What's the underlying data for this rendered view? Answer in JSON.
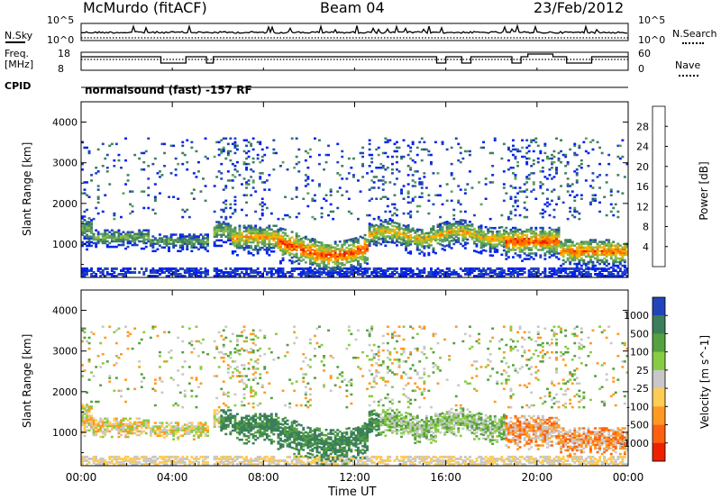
{
  "header": {
    "station": "McMurdo (fitACF)",
    "beam": "Beam 04",
    "date": "23/Feb/2012",
    "program": "normalsound (fast) -157 RF"
  },
  "top_panels": {
    "nsky_label": "N.Sky",
    "nsky_ticks": [
      "10^5",
      "10^0"
    ],
    "nsearch_label": "N.Search",
    "nsearch_ticks": [
      "10^5",
      "10^0"
    ],
    "freq_label_line1": "Freq.",
    "freq_label_line2": "[MHz]",
    "freq_ticks": [
      "18",
      "8"
    ],
    "nave_label": "Nave",
    "nave_ticks": [
      "60",
      "0"
    ],
    "cpid_label": "CPID"
  },
  "colors": {
    "power_scale": [
      "#0022ee",
      "#2244bb",
      "#3f7f5f",
      "#5fa05f",
      "#90c040",
      "#ffb000",
      "#ff7000",
      "#ee2000"
    ],
    "velocity_scale": [
      "#2244bb",
      "#3a7f5a",
      "#55a040",
      "#88cc44",
      "#c8c8c8",
      "#ffcc55",
      "#ff9922",
      "#ff6010",
      "#ee2000"
    ]
  },
  "chart_data": [
    {
      "type": "heatmap",
      "title": "",
      "xlabel": "",
      "ylabel": "Slant Range [km]",
      "x_ticks": [
        "00:00",
        "04:00",
        "08:00",
        "12:00",
        "16:00",
        "20:00",
        "00:00"
      ],
      "y_ticks": [
        "1000",
        "2000",
        "3000",
        "4000"
      ],
      "ylim": [
        180,
        4500
      ],
      "colorbar_label": "Power [dB]",
      "colorbar_ticks": [
        "4",
        "8",
        "12",
        "16",
        "20",
        "24",
        "28"
      ],
      "colorbar_range": [
        0,
        32
      ],
      "dominant_echo": {
        "hours": [
          0,
          24
        ],
        "slant_range_km": [
          700,
          1500
        ],
        "power_db": [
          12,
          30
        ]
      }
    },
    {
      "type": "heatmap",
      "title": "",
      "xlabel": "Time UT",
      "ylabel": "Slant Range [km]",
      "x_ticks": [
        "00:00",
        "04:00",
        "08:00",
        "12:00",
        "16:00",
        "20:00",
        "00:00"
      ],
      "y_ticks": [
        "1000",
        "2000",
        "3000",
        "4000"
      ],
      "ylim": [
        180,
        4500
      ],
      "colorbar_label": "Velocity [m s^-1]",
      "colorbar_ticks": [
        "1000",
        "500",
        "100",
        "25",
        "-25",
        "-100",
        "-500",
        "-1000"
      ],
      "colorbar_range": [
        -1000,
        1000
      ]
    }
  ]
}
